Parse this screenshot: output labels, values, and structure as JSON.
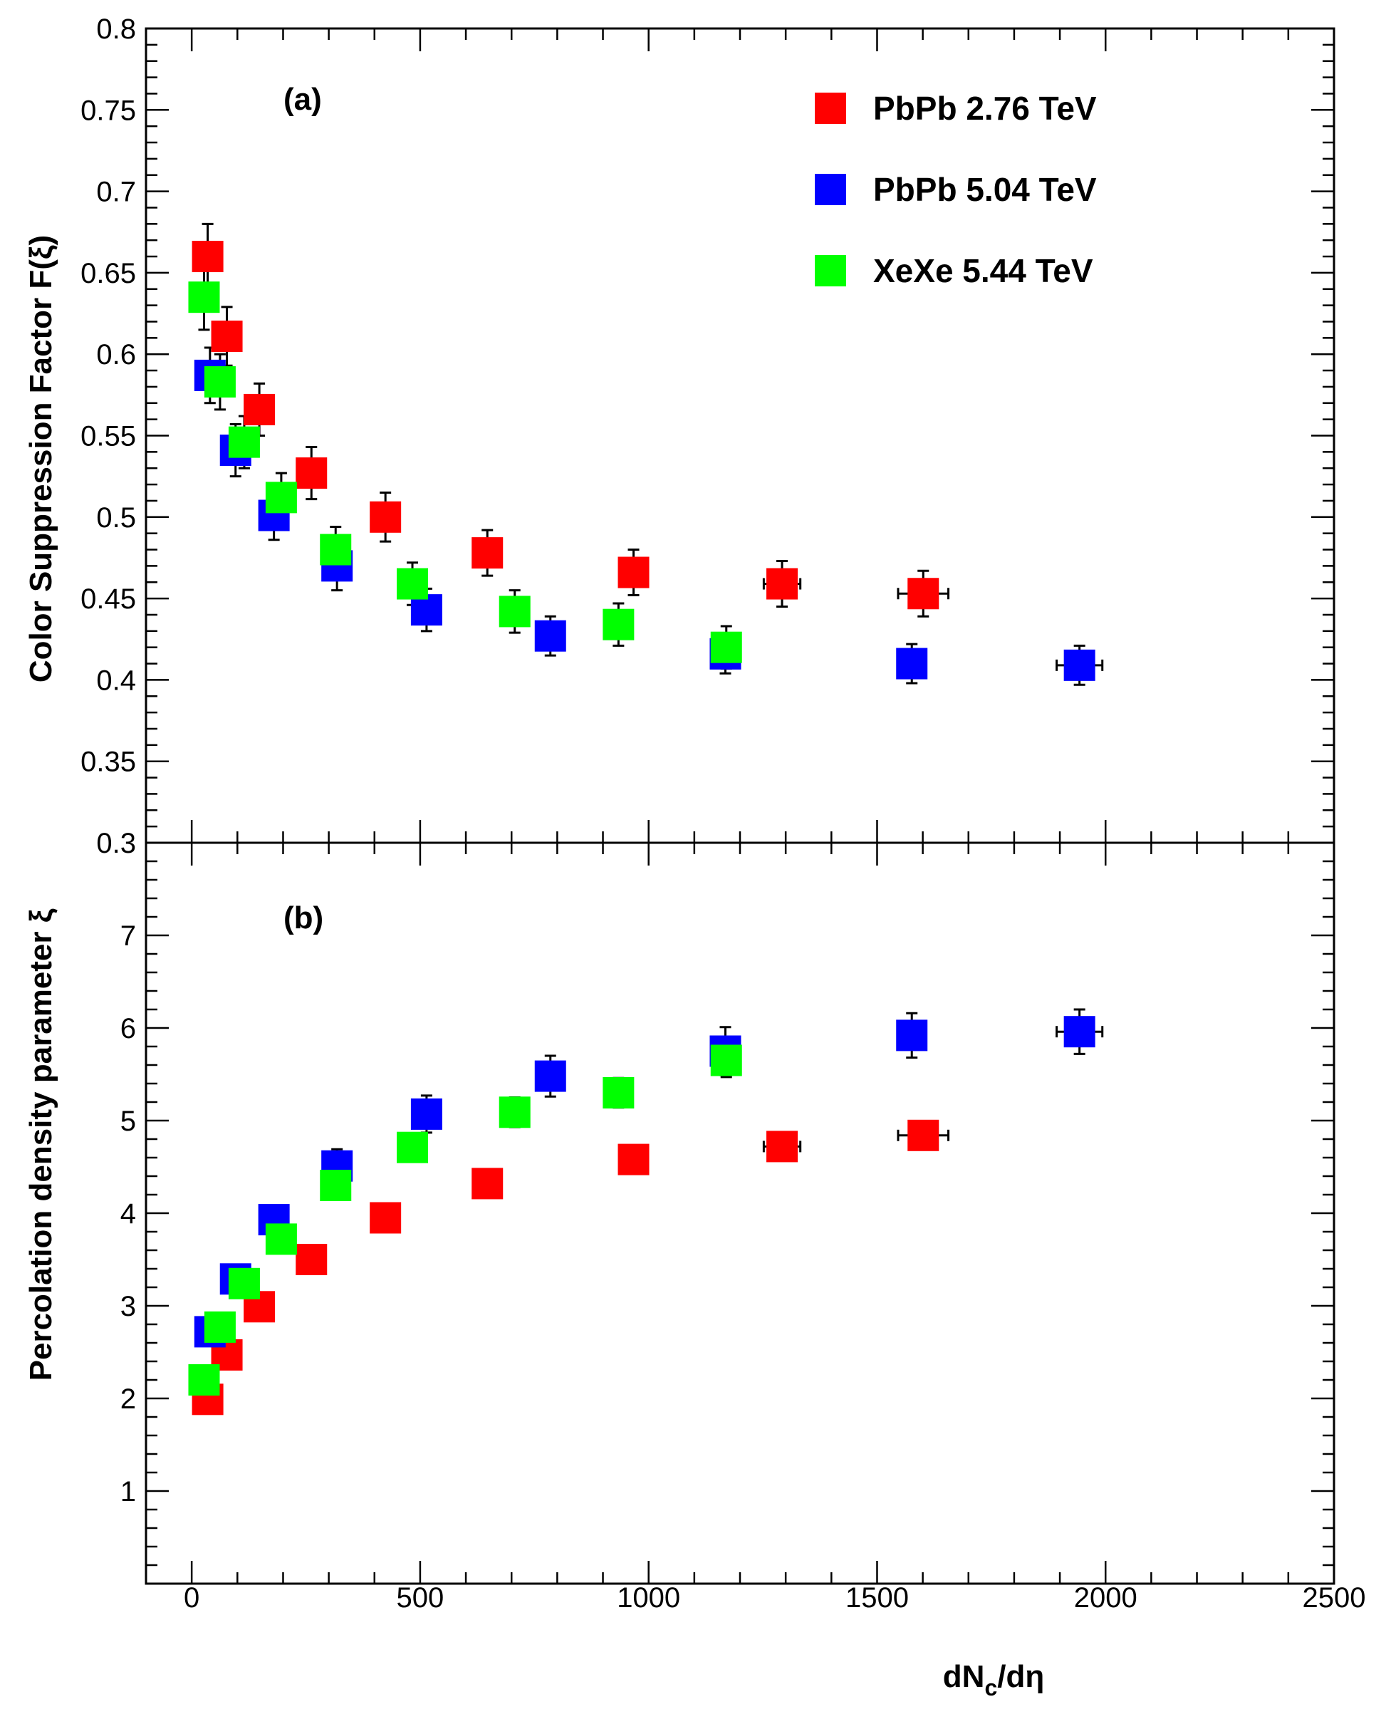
{
  "chart_data": {
    "type": "scatter",
    "x_title_base": "dN",
    "x_title_sub": "c",
    "x_title_end": "/dη",
    "xlim": [
      -100,
      2500
    ],
    "x_ticks": [
      0,
      500,
      1000,
      1500,
      2000,
      2500
    ],
    "legend": {
      "placement": "top-right of panel (a)",
      "entries": [
        {
          "label": "PbPb 2.76 TeV",
          "color": "#ff0000"
        },
        {
          "label": "PbPb 5.04 TeV",
          "color": "#0000ff"
        },
        {
          "label": "XeXe 5.44 TeV",
          "color": "#00ff00"
        }
      ]
    },
    "panels": [
      {
        "panel_label": "(a)",
        "ylabel": "Color Suppression Factor F(ξ)",
        "ylim": [
          0.3,
          0.8
        ],
        "y_ticks": [
          "0.3",
          "0.35",
          "0.4",
          "0.45",
          "0.5",
          "0.55",
          "0.6",
          "0.65",
          "0.7",
          "0.75",
          "0.8"
        ],
        "series": [
          {
            "name": "PbPb 2.76 TeV",
            "color": "#ff0000",
            "x": [
              35,
              77,
              148,
              262,
              424,
              647,
              967,
              1292,
              1601
            ],
            "xerr": [
              0,
              0,
              0,
              0,
              0,
              0,
              15,
              40,
              55
            ],
            "y": [
              0.66,
              0.611,
              0.566,
              0.527,
              0.5,
              0.478,
              0.466,
              0.459,
              0.453
            ],
            "yerr": [
              0.02,
              0.018,
              0.016,
              0.016,
              0.015,
              0.014,
              0.014,
              0.014,
              0.014
            ]
          },
          {
            "name": "PbPb 5.04 TeV",
            "color": "#0000ff",
            "x": [
              40,
              96,
              180,
              318,
              514,
              785,
              1168,
              1576,
              1943
            ],
            "xerr": [
              0,
              0,
              0,
              0,
              0,
              0,
              20,
              30,
              50
            ],
            "y": [
              0.587,
              0.541,
              0.501,
              0.47,
              0.443,
              0.427,
              0.416,
              0.41,
              0.409
            ],
            "yerr": [
              0.017,
              0.016,
              0.015,
              0.015,
              0.013,
              0.012,
              0.012,
              0.012,
              0.012
            ]
          },
          {
            "name": "XeXe 5.44 TeV",
            "color": "#00ff00",
            "x": [
              27,
              62,
              115,
              196,
              315,
              483,
              707,
              934,
              1170
            ],
            "xerr": [
              0,
              0,
              0,
              0,
              0,
              0,
              0,
              0,
              0
            ],
            "y": [
              0.635,
              0.583,
              0.546,
              0.512,
              0.48,
              0.459,
              0.442,
              0.434,
              0.42
            ],
            "yerr": [
              0.02,
              0.017,
              0.016,
              0.015,
              0.014,
              0.013,
              0.013,
              0.013,
              0.013
            ]
          }
        ]
      },
      {
        "panel_label": "(b)",
        "ylabel": "Percolation density parameter ξ",
        "ylim": [
          0,
          8
        ],
        "y_ticks": [
          "1",
          "2",
          "3",
          "4",
          "5",
          "6",
          "7"
        ],
        "series": [
          {
            "name": "PbPb 2.76 TeV",
            "color": "#ff0000",
            "x": [
              35,
              77,
              148,
              262,
              424,
              647,
              967,
              1292,
              1601
            ],
            "xerr": [
              0,
              0,
              0,
              0,
              0,
              0,
              15,
              40,
              55
            ],
            "y": [
              1.99,
              2.47,
              2.99,
              3.5,
              3.95,
              4.32,
              4.58,
              4.72,
              4.84
            ],
            "yerr": [
              0.05,
              0.05,
              0.06,
              0.06,
              0.07,
              0.08,
              0.13,
              0.13,
              0.14
            ]
          },
          {
            "name": "PbPb 5.04 TeV",
            "color": "#0000ff",
            "x": [
              40,
              96,
              180,
              318,
              514,
              785,
              1168,
              1576,
              1943
            ],
            "xerr": [
              0,
              0,
              0,
              0,
              0,
              0,
              20,
              30,
              50
            ],
            "y": [
              2.72,
              3.29,
              3.93,
              4.51,
              5.07,
              5.48,
              5.75,
              5.92,
              5.96
            ],
            "yerr": [
              0.08,
              0.1,
              0.12,
              0.18,
              0.2,
              0.22,
              0.26,
              0.24,
              0.24
            ]
          },
          {
            "name": "XeXe 5.44 TeV",
            "color": "#00ff00",
            "x": [
              27,
              62,
              115,
              196,
              315,
              483,
              707,
              934,
              1170
            ],
            "xerr": [
              0,
              0,
              0,
              0,
              0,
              0,
              0,
              0,
              0
            ],
            "y": [
              2.2,
              2.77,
              3.24,
              3.72,
              4.3,
              4.71,
              5.09,
              5.3,
              5.65
            ],
            "yerr": [
              0.06,
              0.08,
              0.1,
              0.1,
              0.12,
              0.14,
              0.16,
              0.16,
              0.18
            ]
          }
        ]
      }
    ]
  }
}
